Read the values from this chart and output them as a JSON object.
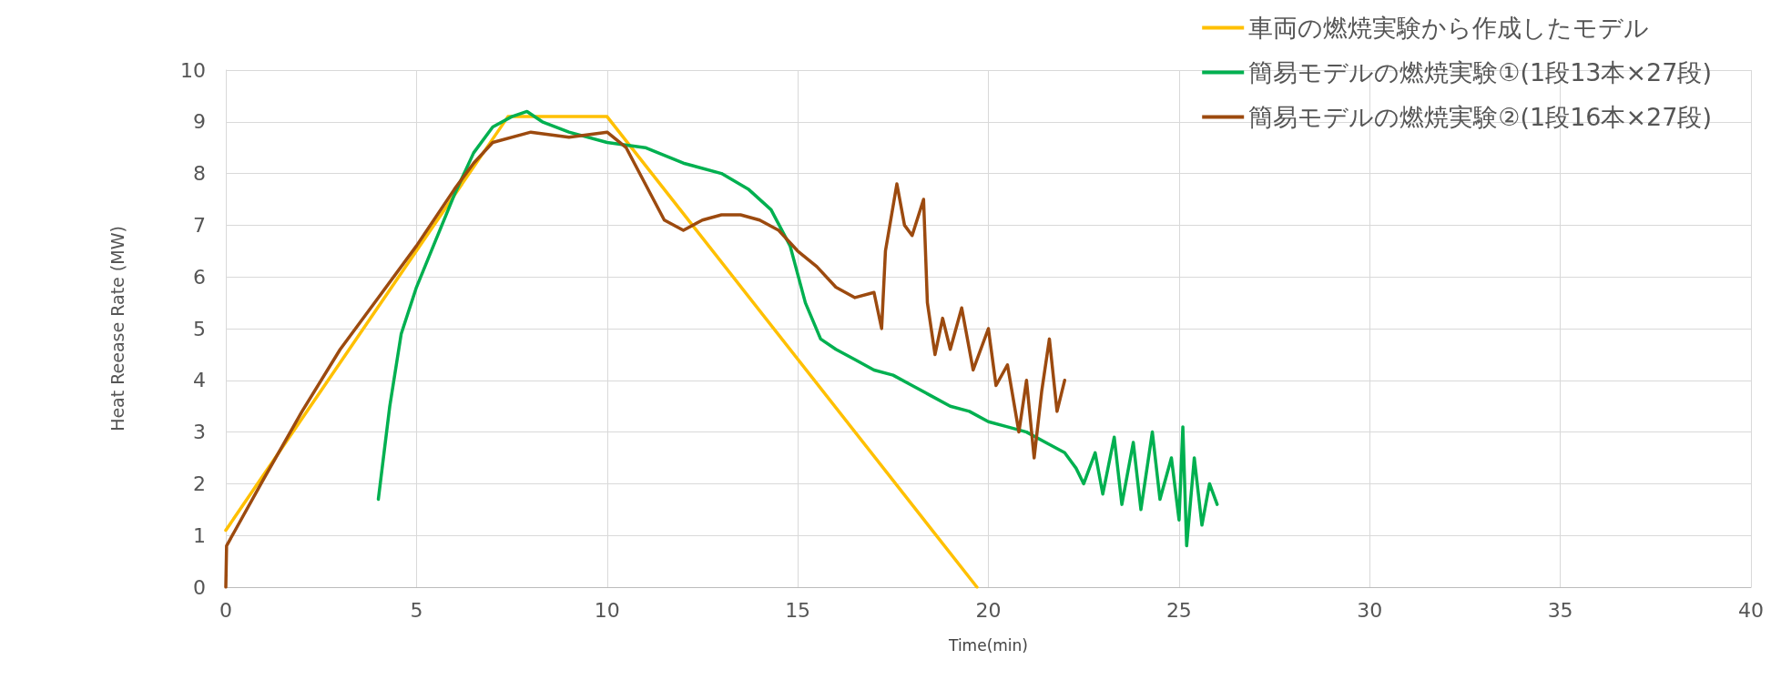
{
  "chart_data": {
    "type": "line",
    "xlabel": "Time(min)",
    "ylabel": "Heat Reease Rate (MW)",
    "xlim": [
      0,
      40
    ],
    "xticks": [
      0,
      5,
      10,
      15,
      20,
      25,
      30,
      35,
      40
    ],
    "ylim": [
      0,
      10
    ],
    "yticks": [
      0,
      1,
      2,
      3,
      4,
      5,
      6,
      7,
      8,
      9,
      10
    ],
    "grid": true,
    "legend": "top right",
    "marker": "none",
    "line_style": "solid",
    "series": [
      {
        "name": "車両の燃焼実験から作成したモデル",
        "color": "#ffc000",
        "x": [
          0,
          7.4,
          10,
          19.7
        ],
        "values": [
          1.1,
          9.1,
          9.1,
          0
        ]
      },
      {
        "name": "簡易モデルの燃焼実験①(1段13本×27段)",
        "color": "#00b050",
        "x": [
          4,
          4.3,
          4.6,
          5,
          5.5,
          6,
          6.5,
          7,
          7.5,
          7.9,
          8.3,
          9,
          10,
          11,
          12,
          13,
          13.7,
          14.3,
          14.8,
          15.2,
          15.6,
          16,
          16.5,
          17,
          17.5,
          18,
          18.5,
          19,
          19.5,
          20,
          20.5,
          21,
          21.5,
          22,
          22.3,
          22.5,
          22.8,
          23,
          23.3,
          23.5,
          23.8,
          24,
          24.3,
          24.5,
          24.8,
          25,
          25.1,
          25.2,
          25.4,
          25.6,
          25.8,
          26
        ],
        "values": [
          1.7,
          3.5,
          4.9,
          5.8,
          6.7,
          7.6,
          8.4,
          8.9,
          9.1,
          9.2,
          9.0,
          8.8,
          8.6,
          8.5,
          8.2,
          8.0,
          7.7,
          7.3,
          6.6,
          5.5,
          4.8,
          4.6,
          4.4,
          4.2,
          4.1,
          3.9,
          3.7,
          3.5,
          3.4,
          3.2,
          3.1,
          3.0,
          2.8,
          2.6,
          2.3,
          2.0,
          2.6,
          1.8,
          2.9,
          1.6,
          2.8,
          1.5,
          3.0,
          1.7,
          2.5,
          1.3,
          3.1,
          0.8,
          2.5,
          1.2,
          2.0,
          1.6
        ]
      },
      {
        "name": "簡易モデルの燃焼実験②(1段16本×27段)",
        "color": "#9c4a0f",
        "x": [
          0,
          0.02,
          1,
          2,
          3,
          4,
          5,
          6,
          6.5,
          7,
          8,
          9,
          10,
          10.5,
          11,
          11.5,
          12,
          12.5,
          13,
          13.5,
          14,
          14.5,
          15,
          15.5,
          16,
          16.5,
          17,
          17.2,
          17.3,
          17.6,
          17.8,
          18,
          18.3,
          18.4,
          18.6,
          18.8,
          19,
          19.3,
          19.6,
          20,
          20.2,
          20.5,
          20.8,
          21,
          21.2,
          21.4,
          21.6,
          21.8,
          22
        ],
        "values": [
          0,
          0.8,
          2.1,
          3.4,
          4.6,
          5.6,
          6.6,
          7.7,
          8.2,
          8.6,
          8.8,
          8.7,
          8.8,
          8.5,
          7.8,
          7.1,
          6.9,
          7.1,
          7.2,
          7.2,
          7.1,
          6.9,
          6.5,
          6.2,
          5.8,
          5.6,
          5.7,
          5.0,
          6.5,
          7.8,
          7.0,
          6.8,
          7.5,
          5.5,
          4.5,
          5.2,
          4.6,
          5.4,
          4.2,
          5.0,
          3.9,
          4.3,
          3.0,
          4.0,
          2.5,
          3.8,
          4.8,
          3.4,
          4.0
        ]
      }
    ]
  }
}
